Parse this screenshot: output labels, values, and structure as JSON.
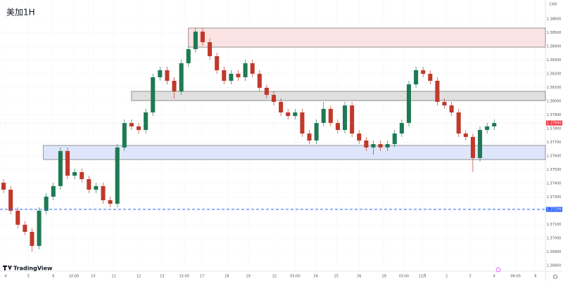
{
  "chart_data": {
    "type": "candlestick",
    "title": "美加1H",
    "currency": "CAD",
    "brand": "TradingView",
    "up_color": "#1e7a54",
    "down_color": "#c0392b",
    "ylim": [
      1.36763,
      1.38738
    ],
    "yticks": [
      {
        "value": 1.386,
        "label": "1.38600"
      },
      {
        "value": 1.385,
        "label": "1.38500"
      },
      {
        "value": 1.384,
        "label": "1.38400"
      },
      {
        "value": 1.383,
        "label": "1.38300"
      },
      {
        "value": 1.382,
        "label": "1.38200"
      },
      {
        "value": 1.381,
        "label": "1.38100"
      },
      {
        "value": 1.38,
        "label": "1.38000"
      },
      {
        "value": 1.379,
        "label": "1.37900"
      },
      {
        "value": 1.378,
        "label": "1.37800"
      },
      {
        "value": 1.377,
        "label": "1.37700"
      },
      {
        "value": 1.376,
        "label": "1.37600"
      },
      {
        "value": 1.375,
        "label": "1.37500"
      },
      {
        "value": 1.374,
        "label": "1.37400"
      },
      {
        "value": 1.373,
        "label": "1.37300"
      },
      {
        "value": 1.372,
        "label": "1.37200"
      },
      {
        "value": 1.371,
        "label": "1.37100"
      },
      {
        "value": 1.37,
        "label": "1.37000"
      },
      {
        "value": 1.369,
        "label": "1.36900"
      },
      {
        "value": 1.368,
        "label": "1.36800"
      }
    ],
    "xlim": [
      -0.5,
      76.2
    ],
    "xticks": [
      {
        "value": 0.3,
        "label": "4"
      },
      {
        "value": 3.5,
        "label": "5"
      },
      {
        "value": 7,
        "label": "6"
      },
      {
        "value": 9.9,
        "label": "10:00"
      },
      {
        "value": 12.6,
        "label": "10"
      },
      {
        "value": 15.5,
        "label": "11"
      },
      {
        "value": 19,
        "label": "12"
      },
      {
        "value": 22.3,
        "label": "13"
      },
      {
        "value": 25.4,
        "label": "15:00"
      },
      {
        "value": 27.9,
        "label": "17"
      },
      {
        "value": 31.4,
        "label": "18"
      },
      {
        "value": 34.4,
        "label": "19"
      },
      {
        "value": 38.1,
        "label": "22"
      },
      {
        "value": 41,
        "label": "03:00"
      },
      {
        "value": 43.9,
        "label": "24"
      },
      {
        "value": 46.8,
        "label": "25"
      },
      {
        "value": 50,
        "label": "26"
      },
      {
        "value": 53.5,
        "label": "29"
      },
      {
        "value": 56.3,
        "label": "03:00"
      },
      {
        "value": 58.9,
        "label": "12月"
      },
      {
        "value": 62.3,
        "label": "2"
      },
      {
        "value": 65.6,
        "label": "3"
      },
      {
        "value": 69,
        "label": "4"
      },
      {
        "value": 72,
        "label": "06:00"
      },
      {
        "value": 74.8,
        "label": "8"
      }
    ],
    "open": [
      1.37404,
      1.37353,
      1.37199,
      1.37097,
      1.37045,
      1.36942,
      1.37199,
      1.37302,
      1.37379,
      1.37635,
      1.37455,
      1.37481,
      1.3743,
      1.37353,
      1.37379,
      1.37276,
      1.3725,
      1.37661,
      1.3784,
      1.37815,
      1.37789,
      1.37917,
      1.38174,
      1.38225,
      1.38148,
      1.38071,
      1.38276,
      1.38379,
      1.38507,
      1.3843,
      1.38328,
      1.38225,
      1.38148,
      1.38199,
      1.38174,
      1.38276,
      1.38199,
      1.38097,
      1.38045,
      1.37994,
      1.37917,
      1.37891,
      1.37917,
      1.37763,
      1.37712,
      1.3784,
      1.37943,
      1.3784,
      1.37789,
      1.37968,
      1.37763,
      1.37712,
      1.37661,
      1.37686,
      1.37661,
      1.37686,
      1.37763,
      1.3784,
      1.38122,
      1.38225,
      1.38199,
      1.38148,
      1.37994,
      1.37968,
      1.37917,
      1.37763,
      1.37738,
      1.37584,
      1.37789,
      1.37815
    ],
    "high": [
      1.3743,
      1.37379,
      1.37225,
      1.37122,
      1.37071,
      1.37225,
      1.37327,
      1.37404,
      1.37661,
      1.37661,
      1.37507,
      1.37507,
      1.37455,
      1.37404,
      1.37404,
      1.37302,
      1.37686,
      1.37866,
      1.37866,
      1.3784,
      1.37943,
      1.38199,
      1.38251,
      1.38251,
      1.38174,
      1.38302,
      1.38405,
      1.38533,
      1.38533,
      1.38456,
      1.38353,
      1.38251,
      1.38225,
      1.38225,
      1.38302,
      1.38302,
      1.38225,
      1.38122,
      1.38071,
      1.3802,
      1.37943,
      1.37943,
      1.37943,
      1.37789,
      1.37866,
      1.37994,
      1.37968,
      1.37866,
      1.37994,
      1.37994,
      1.37789,
      1.37738,
      1.37712,
      1.37712,
      1.37712,
      1.37789,
      1.37866,
      1.38148,
      1.38251,
      1.38251,
      1.38225,
      1.38174,
      1.3802,
      1.37994,
      1.37943,
      1.37789,
      1.37763,
      1.37815,
      1.3784,
      1.37866
    ],
    "low": [
      1.37327,
      1.37173,
      1.37071,
      1.3702,
      1.36901,
      1.36917,
      1.37173,
      1.37276,
      1.37353,
      1.3743,
      1.3743,
      1.37404,
      1.37327,
      1.37327,
      1.3725,
      1.37225,
      1.37225,
      1.37635,
      1.37789,
      1.37763,
      1.37763,
      1.37891,
      1.38148,
      1.38122,
      1.3802,
      1.38045,
      1.38251,
      1.38353,
      1.38405,
      1.38302,
      1.38199,
      1.38122,
      1.38122,
      1.38148,
      1.38148,
      1.38174,
      1.38071,
      1.3802,
      1.37968,
      1.37891,
      1.37866,
      1.37866,
      1.37738,
      1.37686,
      1.37686,
      1.37815,
      1.37815,
      1.37763,
      1.37763,
      1.37738,
      1.37686,
      1.37635,
      1.37609,
      1.37635,
      1.37635,
      1.37661,
      1.37738,
      1.37815,
      1.38097,
      1.38174,
      1.38122,
      1.37968,
      1.37943,
      1.37891,
      1.37738,
      1.37712,
      1.37481,
      1.37558,
      1.37763,
      1.37789
    ],
    "close": [
      1.37353,
      1.37199,
      1.37097,
      1.37045,
      1.36942,
      1.37199,
      1.37302,
      1.37379,
      1.37635,
      1.37455,
      1.37481,
      1.3743,
      1.37353,
      1.37379,
      1.37276,
      1.3725,
      1.37661,
      1.3784,
      1.37815,
      1.37789,
      1.37917,
      1.38174,
      1.38225,
      1.38148,
      1.38071,
      1.38276,
      1.38379,
      1.38507,
      1.3843,
      1.38328,
      1.38225,
      1.38148,
      1.38199,
      1.38174,
      1.38276,
      1.38199,
      1.38097,
      1.38045,
      1.37994,
      1.37917,
      1.37891,
      1.37917,
      1.37763,
      1.37712,
      1.3784,
      1.37943,
      1.3784,
      1.37789,
      1.37968,
      1.37763,
      1.37712,
      1.37661,
      1.37686,
      1.37661,
      1.37686,
      1.37763,
      1.3784,
      1.38122,
      1.38225,
      1.38199,
      1.38148,
      1.37994,
      1.37968,
      1.37917,
      1.37763,
      1.37738,
      1.37584,
      1.37789,
      1.37815,
      1.3784
    ],
    "zones": [
      {
        "top": 1.38533,
        "bottom": 1.38394,
        "start": 26,
        "color": "#fbe3e3",
        "border": "#555"
      },
      {
        "top": 1.38071,
        "bottom": 1.38004,
        "start": 18,
        "color": "#e0e0e0",
        "border": "#555"
      },
      {
        "top": 1.37676,
        "bottom": 1.37573,
        "start": 5.6,
        "color": "#dfe6fb",
        "border": "#555"
      }
    ],
    "level_line": {
      "value": 1.37209,
      "label": "1.37209",
      "color": "#2962ff"
    },
    "last_price": {
      "value": 1.3784,
      "label": "1.37840",
      "color": "#f23645"
    }
  }
}
